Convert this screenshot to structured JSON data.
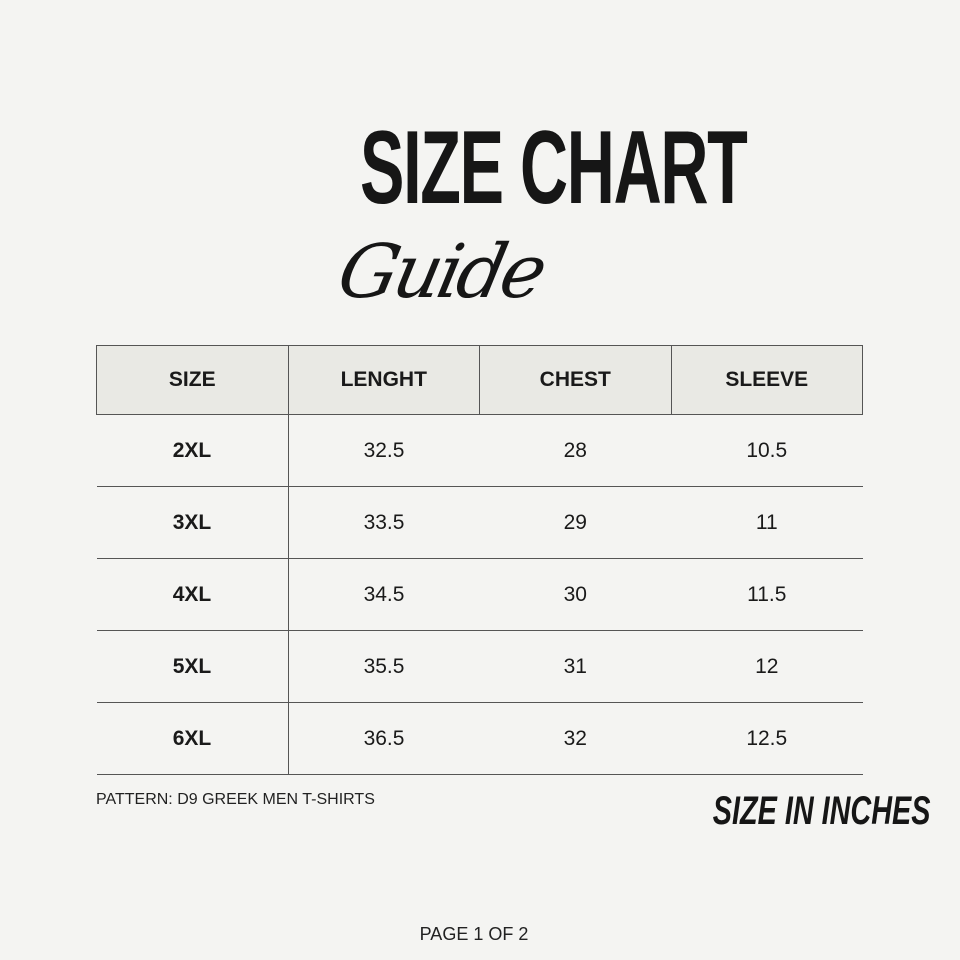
{
  "title": {
    "main": "SIZE CHART",
    "script": "Guide"
  },
  "table": {
    "headers": [
      "SIZE",
      "LENGHT",
      "CHEST",
      "SLEEVE"
    ],
    "rows": [
      [
        "2XL",
        "32.5",
        "28",
        "10.5"
      ],
      [
        "3XL",
        "33.5",
        "29",
        "11"
      ],
      [
        "4XL",
        "34.5",
        "30",
        "11.5"
      ],
      [
        "5XL",
        "35.5",
        "31",
        "12"
      ],
      [
        "6XL",
        "36.5",
        "32",
        "12.5"
      ]
    ]
  },
  "footer": {
    "pattern": "PATTERN: D9 GREEK MEN T-SHIRTS",
    "units": "SIZE IN INCHES",
    "page": "PAGE 1 OF 2"
  },
  "colors": {
    "background": "#f4f4f2",
    "header_bg": "#e9e9e4",
    "text": "#1a1a1a"
  }
}
